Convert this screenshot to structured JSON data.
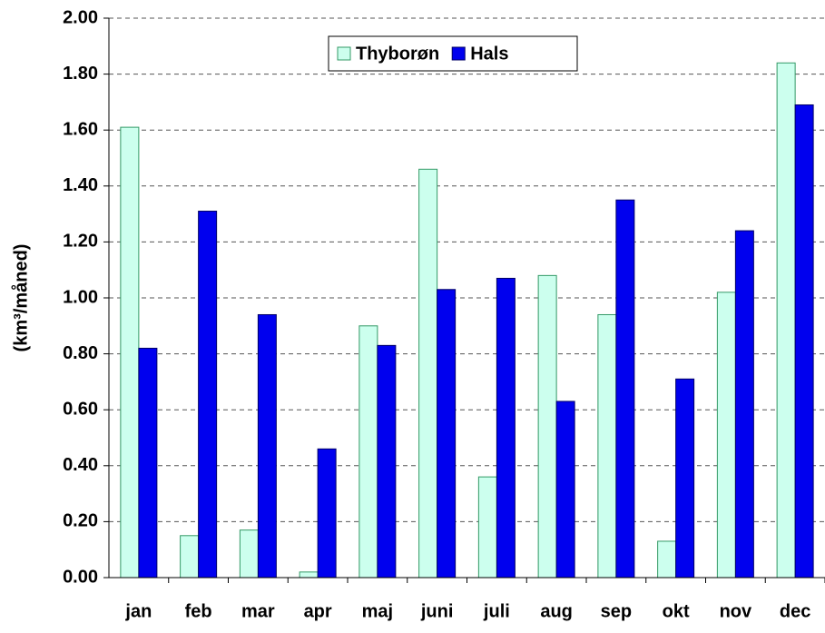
{
  "chart_data": {
    "type": "bar",
    "ylabel": "(km³/måned)",
    "categories": [
      "jan",
      "feb",
      "mar",
      "apr",
      "maj",
      "juni",
      "juli",
      "aug",
      "sep",
      "okt",
      "nov",
      "dec"
    ],
    "series": [
      {
        "name": "Thyborøn",
        "color": "#ccffee",
        "values": [
          1.61,
          0.15,
          0.17,
          0.02,
          0.9,
          1.46,
          0.36,
          1.08,
          0.94,
          0.13,
          1.02,
          1.84
        ]
      },
      {
        "name": "Hals",
        "color": "#0000ee",
        "values": [
          0.82,
          1.31,
          0.94,
          0.46,
          0.83,
          1.03,
          1.07,
          0.63,
          1.35,
          0.71,
          1.24,
          1.69
        ]
      }
    ],
    "ylim": [
      0,
      2
    ],
    "yticks": [
      {
        "value": 0,
        "label": "0.00"
      },
      {
        "value": 0.2,
        "label": "0.20"
      },
      {
        "value": 0.4,
        "label": "0.40"
      },
      {
        "value": 0.6,
        "label": "0.60"
      },
      {
        "value": 0.8,
        "label": "0.80"
      },
      {
        "value": 1.0,
        "label": "1.00"
      },
      {
        "value": 1.2,
        "label": "1.20"
      },
      {
        "value": 1.4,
        "label": "1.40"
      },
      {
        "value": 1.6,
        "label": "1.60"
      },
      {
        "value": 1.8,
        "label": "1.80"
      },
      {
        "value": 2.0,
        "label": "2.00"
      }
    ],
    "grid": true,
    "legend": "top"
  }
}
